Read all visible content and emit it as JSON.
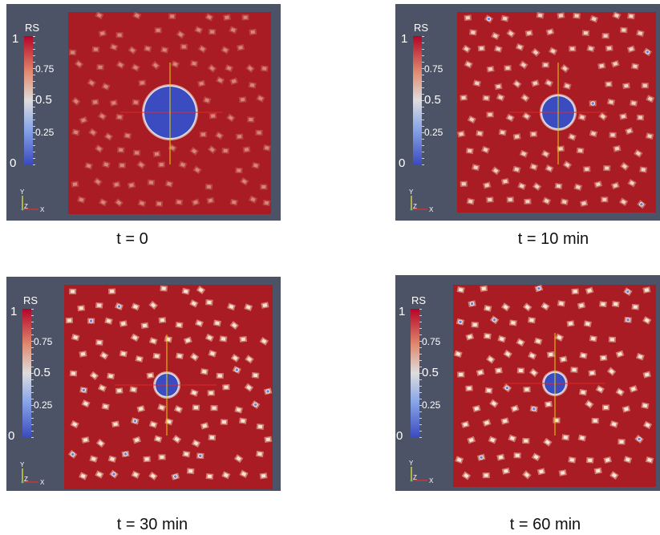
{
  "colors": {
    "background": "#4d5366",
    "field": "#aa1c24",
    "low": "#3b4cc0",
    "mid": "#dddddd",
    "high": "#b40426",
    "crosshair_vertical": "#e6d200",
    "crosshair_horizontal": "#e02828"
  },
  "panels": [
    {
      "caption": "t = 0",
      "colorbar": {
        "title": "RS",
        "labels": [
          "1",
          "0.75",
          "0.5",
          "0.25",
          "0"
        ]
      },
      "axes": {
        "y": "Y",
        "z": "Z",
        "x": "X"
      }
    },
    {
      "caption": "t = 10 min",
      "colorbar": {
        "title": "RS",
        "labels": [
          "1",
          "0.75",
          "0.5",
          "0.25",
          "0"
        ]
      },
      "axes": {
        "y": "Y",
        "z": "Z",
        "x": "X"
      }
    },
    {
      "caption": "t = 30 min",
      "colorbar": {
        "title": "RS",
        "labels": [
          "1",
          "0.75",
          "0.5",
          "0.25",
          "0"
        ]
      },
      "axes": {
        "y": "Y",
        "z": "Z",
        "x": "X"
      }
    },
    {
      "caption": "t = 60 min",
      "colorbar": {
        "title": "RS",
        "labels": [
          "1",
          "0.75",
          "0.5",
          "0.25",
          "0"
        ]
      },
      "axes": {
        "y": "Y",
        "z": "Z",
        "x": "X"
      }
    }
  ]
}
